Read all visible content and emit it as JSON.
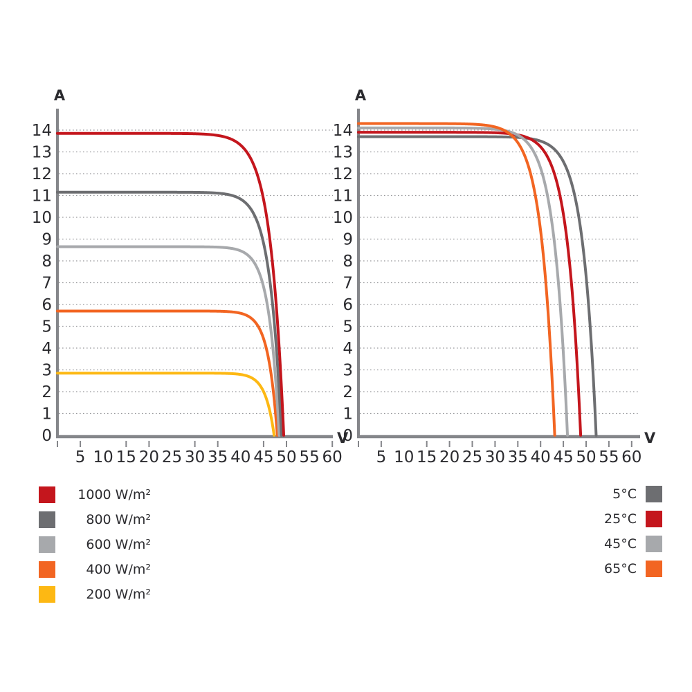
{
  "page": {
    "background": "#ffffff"
  },
  "style": {
    "axis_color": "#85868a",
    "grid_color": "#97989b",
    "text_color": "#2b2b2f",
    "red": "#c4161d",
    "dark_gray": "#6d6e71",
    "light_gray": "#a7a9ac",
    "orange": "#f26522",
    "yellow": "#fdb813"
  },
  "chart_data": [
    {
      "id": "irradiance",
      "type": "line",
      "title": "",
      "xlabel": "V",
      "ylabel": "A",
      "xlim": [
        0,
        62
      ],
      "ylim": [
        0,
        15
      ],
      "grid": "dotted horizontal lines at every 1 A",
      "legend_position": "bottom-left",
      "x_tick_labels": [
        5,
        10,
        15,
        20,
        25,
        30,
        35,
        40,
        45,
        50,
        55,
        60
      ],
      "x_tick_marks": [
        0,
        5,
        15,
        20,
        30,
        35,
        45,
        50,
        60
      ],
      "y_tick_labels": [
        0,
        1,
        2,
        3,
        4,
        5,
        6,
        7,
        8,
        9,
        10,
        11,
        12,
        13,
        14
      ],
      "series": [
        {
          "key": "1000-wm2",
          "name": "1000 W/m²",
          "color": "#c4161d",
          "isc_a": 13.85,
          "voc_v": 49.4,
          "knee": 2.9
        },
        {
          "key": "800-wm2",
          "name": "800 W/m²",
          "color": "#6d6e71",
          "isc_a": 11.15,
          "voc_v": 48.9,
          "knee": 2.5
        },
        {
          "key": "600-wm2",
          "name": "600 W/m²",
          "color": "#a7a9ac",
          "isc_a": 8.65,
          "voc_v": 48.4,
          "knee": 2.2
        },
        {
          "key": "400-wm2",
          "name": "400 W/m²",
          "color": "#f26522",
          "isc_a": 5.7,
          "voc_v": 48.0,
          "knee": 2.0
        },
        {
          "key": "200-wm2",
          "name": "200 W/m²",
          "color": "#fdb813",
          "isc_a": 2.85,
          "voc_v": 47.3,
          "knee": 1.9
        }
      ],
      "draw_order": [
        "200-wm2",
        "400-wm2",
        "600-wm2",
        "800-wm2",
        "1000-wm2"
      ]
    },
    {
      "id": "temperature",
      "type": "line",
      "title": "",
      "xlabel": "V",
      "ylabel": "A",
      "xlim": [
        0,
        62
      ],
      "ylim": [
        0,
        15
      ],
      "grid": "dotted horizontal lines at every 1 A",
      "legend_position": "bottom-right",
      "x_tick_labels": [
        5,
        10,
        15,
        20,
        25,
        30,
        35,
        40,
        45,
        50,
        55,
        60
      ],
      "x_tick_marks": [
        0,
        5,
        15,
        20,
        25,
        30,
        35,
        40,
        45,
        50,
        55,
        60
      ],
      "y_tick_labels": [
        0,
        1,
        2,
        3,
        4,
        5,
        6,
        7,
        8,
        9,
        10,
        11,
        12,
        13,
        14
      ],
      "series": [
        {
          "key": "5c",
          "name": "5°C",
          "color": "#6d6e71",
          "isc_a": 13.7,
          "voc_v": 52.2,
          "knee": 2.9
        },
        {
          "key": "25c",
          "name": "25°C",
          "color": "#c4161d",
          "isc_a": 13.9,
          "voc_v": 48.8,
          "knee": 2.9
        },
        {
          "key": "45c",
          "name": "45°C",
          "color": "#a7a9ac",
          "isc_a": 14.1,
          "voc_v": 45.9,
          "knee": 2.9
        },
        {
          "key": "65c",
          "name": "65°C",
          "color": "#f26522",
          "isc_a": 14.3,
          "voc_v": 43.1,
          "knee": 2.9
        }
      ],
      "draw_order": [
        "5c",
        "25c",
        "45c",
        "65c"
      ]
    }
  ],
  "legends": {
    "irradiance": {
      "items": [
        {
          "label": "1000 W/m²",
          "color": "#c4161d"
        },
        {
          "label": "800 W/m²",
          "color": "#6d6e71"
        },
        {
          "label": "600 W/m²",
          "color": "#a7a9ac"
        },
        {
          "label": "400 W/m²",
          "color": "#f26522"
        },
        {
          "label": "200 W/m²",
          "color": "#fdb813"
        }
      ]
    },
    "temperature": {
      "items": [
        {
          "label": "5°C",
          "color": "#6d6e71"
        },
        {
          "label": "25°C",
          "color": "#c4161d"
        },
        {
          "label": "45°C",
          "color": "#a7a9ac"
        },
        {
          "label": "65°C",
          "color": "#f26522"
        }
      ]
    }
  }
}
